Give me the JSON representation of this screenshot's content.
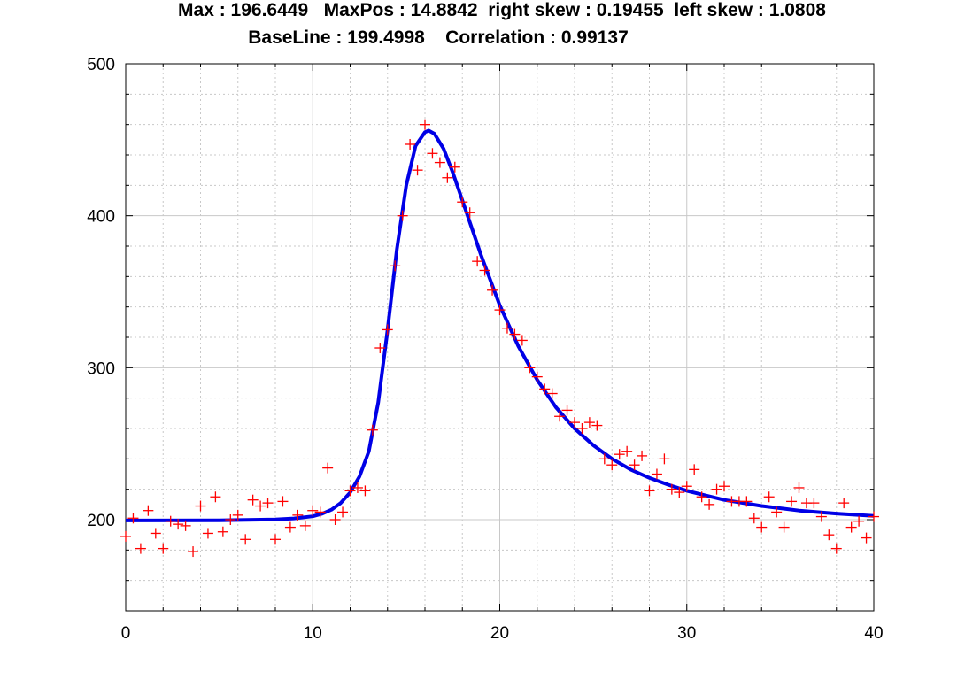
{
  "title": {
    "line1": "Max : 196.6449   MaxPos : 14.8842  right skew : 0.19455  left skew : 1.0808",
    "line2": "BaseLine : 199.4998    Correlation : 0.99137"
  },
  "colors": {
    "fit": "#0000e6",
    "data": "#ff0000",
    "grid": "#c8c8c8"
  },
  "chart_data": {
    "type": "scatter",
    "title": "Max : 196.6449   MaxPos : 14.8842  right skew : 0.19455  left skew : 1.0808 / BaseLine : 199.4998    Correlation : 0.99137",
    "xlabel": "",
    "ylabel": "",
    "xlim": [
      0,
      40
    ],
    "ylim": [
      140,
      500
    ],
    "x_ticks": [
      "0",
      "10",
      "20",
      "30",
      "40"
    ],
    "y_ticks": [
      "200",
      "300",
      "400",
      "500"
    ],
    "x_tick_values": [
      0,
      10,
      20,
      30,
      40
    ],
    "y_tick_values": [
      200,
      300,
      400,
      500
    ],
    "grid": true,
    "series": [
      {
        "style": "markers-plus",
        "color": "#ff0000",
        "x": [
          0.0,
          0.4,
          0.8,
          1.2,
          1.6,
          2.0,
          2.4,
          2.8,
          3.2,
          3.6,
          4.0,
          4.4,
          4.8,
          5.2,
          5.6,
          6.0,
          6.4,
          6.8,
          7.2,
          7.6,
          8.0,
          8.4,
          8.8,
          9.2,
          9.6,
          10.0,
          10.4,
          10.8,
          11.2,
          11.6,
          12.0,
          12.4,
          12.8,
          13.2,
          13.6,
          14.0,
          14.4,
          14.8,
          15.2,
          15.6,
          16.0,
          16.4,
          16.8,
          17.2,
          17.6,
          18.0,
          18.4,
          18.8,
          19.2,
          19.6,
          20.0,
          20.4,
          20.8,
          21.2,
          21.6,
          22.0,
          22.4,
          22.8,
          23.2,
          23.6,
          24.0,
          24.4,
          24.8,
          25.2,
          25.6,
          26.0,
          26.4,
          26.8,
          27.2,
          27.6,
          28.0,
          28.4,
          28.8,
          29.2,
          29.6,
          30.0,
          30.4,
          30.8,
          31.2,
          31.6,
          32.0,
          32.4,
          32.8,
          33.2,
          33.6,
          34.0,
          34.4,
          34.8,
          35.2,
          35.6,
          36.0,
          36.4,
          36.8,
          37.2,
          37.6,
          38.0,
          38.4,
          38.8,
          39.2,
          39.6,
          40.0
        ],
        "y": [
          189,
          201,
          181,
          206,
          191,
          181,
          199,
          197,
          196,
          179,
          209,
          191,
          215,
          192,
          200,
          203,
          187,
          213,
          209,
          211,
          187,
          212,
          195,
          203,
          196,
          206,
          205,
          234,
          200,
          205,
          219,
          221,
          219,
          259,
          313,
          325,
          367,
          400,
          447,
          430,
          460,
          441,
          435,
          425,
          432,
          409,
          402,
          370,
          364,
          351,
          338,
          326,
          322,
          318,
          300,
          294,
          286,
          283,
          268,
          272,
          264,
          260,
          264,
          262,
          240,
          236,
          243,
          245,
          236,
          242,
          219,
          230,
          240,
          220,
          218,
          222,
          233,
          215,
          210,
          220,
          222,
          212,
          212,
          212,
          201,
          195,
          215,
          205,
          195,
          212,
          221,
          211,
          211,
          202,
          190,
          181,
          211,
          195,
          199,
          188,
          202
        ]
      },
      {
        "style": "line",
        "color": "#0000e6",
        "x": [
          0,
          5,
          8,
          9,
          10,
          10.5,
          11,
          11.5,
          12,
          12.5,
          13,
          13.5,
          14,
          14.5,
          15,
          15.5,
          16,
          16.2,
          16.5,
          17,
          17.5,
          18,
          19,
          20,
          21,
          22,
          23,
          24,
          25,
          26,
          27,
          28,
          29,
          30,
          32,
          34,
          36,
          38,
          40
        ],
        "y": [
          199.5,
          199.6,
          200.2,
          200.8,
          202.2,
          203.9,
          206.6,
          211.0,
          217.9,
          228.5,
          245.0,
          277.0,
          325.0,
          378.0,
          420.0,
          446.0,
          455.0,
          456.0,
          454.0,
          444.0,
          428.0,
          410.0,
          374.0,
          341.0,
          314.0,
          292.0,
          274.0,
          260.0,
          249.0,
          240.0,
          233.0,
          227.5,
          223.0,
          219.0,
          213.0,
          209.0,
          206.0,
          204.0,
          202.5
        ]
      }
    ]
  }
}
